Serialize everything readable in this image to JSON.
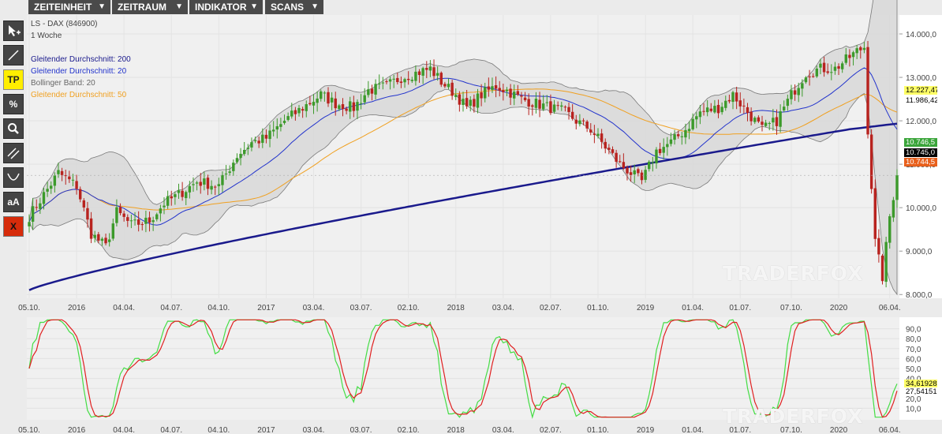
{
  "menu": [
    {
      "label": "ZEITEINHEIT"
    },
    {
      "label": "ZEITRAUM"
    },
    {
      "label": "INDIKATOR"
    },
    {
      "label": "SCANS"
    }
  ],
  "tools": [
    {
      "name": "crosshair-tool",
      "icon": "crosshair-plus-icon"
    },
    {
      "name": "line-tool",
      "icon": "line-icon"
    },
    {
      "name": "tp-tool",
      "label": "TP"
    },
    {
      "name": "percent-tool",
      "label": "%"
    },
    {
      "name": "zoom-tool",
      "icon": "magnifier-icon"
    },
    {
      "name": "channel-tool",
      "icon": "parallel-lines-icon"
    },
    {
      "name": "arc-tool",
      "icon": "arc-icon"
    },
    {
      "name": "text-tool",
      "label": "aA"
    },
    {
      "name": "delete-tool",
      "label": "X"
    }
  ],
  "header": {
    "instrument": "LS - DAX (846900)",
    "timeframe": "1 Woche"
  },
  "legend": [
    {
      "label": "Gleitender Durchschnitt: 200",
      "color": "#1a1a8c"
    },
    {
      "label": "Gleitender Durchschnitt: 20",
      "color": "#2233cc"
    },
    {
      "label": "Bollinger Band: 20",
      "color": "#666666"
    },
    {
      "label": "Gleitender Durchschnitt: 50",
      "color": "#f0a020"
    }
  ],
  "price_tags": [
    {
      "text": "12.227,47",
      "bg": "#ffff66",
      "fg": "#000000"
    },
    {
      "text": "11.986,42",
      "bg": "#ffffff",
      "fg": "#000000"
    },
    {
      "text": "10.746,5",
      "bg": "#3aa53a",
      "fg": "#ffffff"
    },
    {
      "text": "10.745,0",
      "bg": "#000000",
      "fg": "#ffffff"
    },
    {
      "text": "10.744,5",
      "bg": "#e8601c",
      "fg": "#ffffff"
    }
  ],
  "osc_tags": [
    {
      "text": "34,61928",
      "bg": "#ffff66",
      "fg": "#000000"
    },
    {
      "text": "27,54151",
      "bg": "#ffffff",
      "fg": "#000000"
    }
  ],
  "watermark": "TRADERFOX",
  "chart_data": [
    {
      "type": "candlestick",
      "y_ticks": [
        "14.000,0",
        "13.000,0",
        "12.000,0",
        "11.000,0",
        "10.000,0",
        "9.000,0",
        "8.000,0"
      ],
      "y_tick_values": [
        14000,
        13000,
        12000,
        11000,
        10000,
        9000,
        8000
      ],
      "ylim": [
        7950,
        14400
      ],
      "x_tick_labels": [
        "05.10.",
        "2016",
        "04.04.",
        "04.07.",
        "04.10.",
        "2017",
        "03.04.",
        "03.07.",
        "02.10.",
        "2018",
        "03.04.",
        "02.07.",
        "01.10.",
        "2019",
        "01.04.",
        "01.07.",
        "07.10.",
        "2020",
        "06.04."
      ],
      "x_tick_week_index": [
        0,
        13,
        26,
        39,
        52,
        65,
        78,
        91,
        104,
        117,
        130,
        143,
        156,
        169,
        182,
        195,
        209,
        222,
        236
      ],
      "week_count": 239,
      "series": [
        {
          "name": "Gleitender Durchschnitt: 200",
          "color": "#1a1a8c"
        },
        {
          "name": "Gleitender Durchschnitt: 20",
          "color": "#2233cc"
        },
        {
          "name": "Bollinger Band: 20",
          "color": "#777777"
        },
        {
          "name": "Gleitender Durchschnitt: 50",
          "color": "#f0a020"
        }
      ],
      "close_anchor_points": [
        [
          0,
          9800
        ],
        [
          8,
          10800
        ],
        [
          13,
          10500
        ],
        [
          17,
          9400
        ],
        [
          21,
          9100
        ],
        [
          24,
          9900
        ],
        [
          28,
          9600
        ],
        [
          33,
          9700
        ],
        [
          37,
          10100
        ],
        [
          41,
          10300
        ],
        [
          46,
          10600
        ],
        [
          52,
          10500
        ],
        [
          57,
          11200
        ],
        [
          61,
          11500
        ],
        [
          65,
          11600
        ],
        [
          70,
          12000
        ],
        [
          75,
          12300
        ],
        [
          80,
          12600
        ],
        [
          84,
          12400
        ],
        [
          89,
          12300
        ],
        [
          93,
          12700
        ],
        [
          98,
          12800
        ],
        [
          102,
          13000
        ],
        [
          106,
          13100
        ],
        [
          110,
          13200
        ],
        [
          113,
          12900
        ],
        [
          117,
          12600
        ],
        [
          120,
          12300
        ],
        [
          124,
          12600
        ],
        [
          128,
          12800
        ],
        [
          131,
          12700
        ],
        [
          135,
          12500
        ],
        [
          139,
          12400
        ],
        [
          143,
          12300
        ],
        [
          147,
          12200
        ],
        [
          150,
          12000
        ],
        [
          154,
          11800
        ],
        [
          158,
          11400
        ],
        [
          162,
          11000
        ],
        [
          165,
          10800
        ],
        [
          168,
          10600
        ],
        [
          172,
          11300
        ],
        [
          176,
          11500
        ],
        [
          180,
          11800
        ],
        [
          184,
          12200
        ],
        [
          189,
          12300
        ],
        [
          193,
          12600
        ],
        [
          197,
          12200
        ],
        [
          201,
          11800
        ],
        [
          205,
          12000
        ],
        [
          209,
          12600
        ],
        [
          213,
          13100
        ],
        [
          217,
          13200
        ],
        [
          221,
          13200
        ],
        [
          224,
          13400
        ],
        [
          227,
          13600
        ],
        [
          229,
          13700
        ],
        [
          230,
          11800
        ],
        [
          232,
          9200
        ],
        [
          234,
          8400
        ],
        [
          236,
          9800
        ],
        [
          238,
          10745
        ]
      ],
      "last_values": {
        "close": 10745.0,
        "ma200": 11986.42,
        "ma50": 12227.47
      }
    },
    {
      "type": "line",
      "title": "",
      "y_ticks": [
        "90,0",
        "80,0",
        "70,0",
        "60,0",
        "50,0",
        "40,0",
        "30,0",
        "20,0",
        "10,0"
      ],
      "y_tick_values": [
        90,
        80,
        70,
        60,
        50,
        40,
        30,
        20,
        10
      ],
      "ylim": [
        0,
        100
      ],
      "series": [
        {
          "color": "#44dd44",
          "last": 34.61928
        },
        {
          "color": "#e02020",
          "last": 27.54151
        }
      ]
    }
  ]
}
